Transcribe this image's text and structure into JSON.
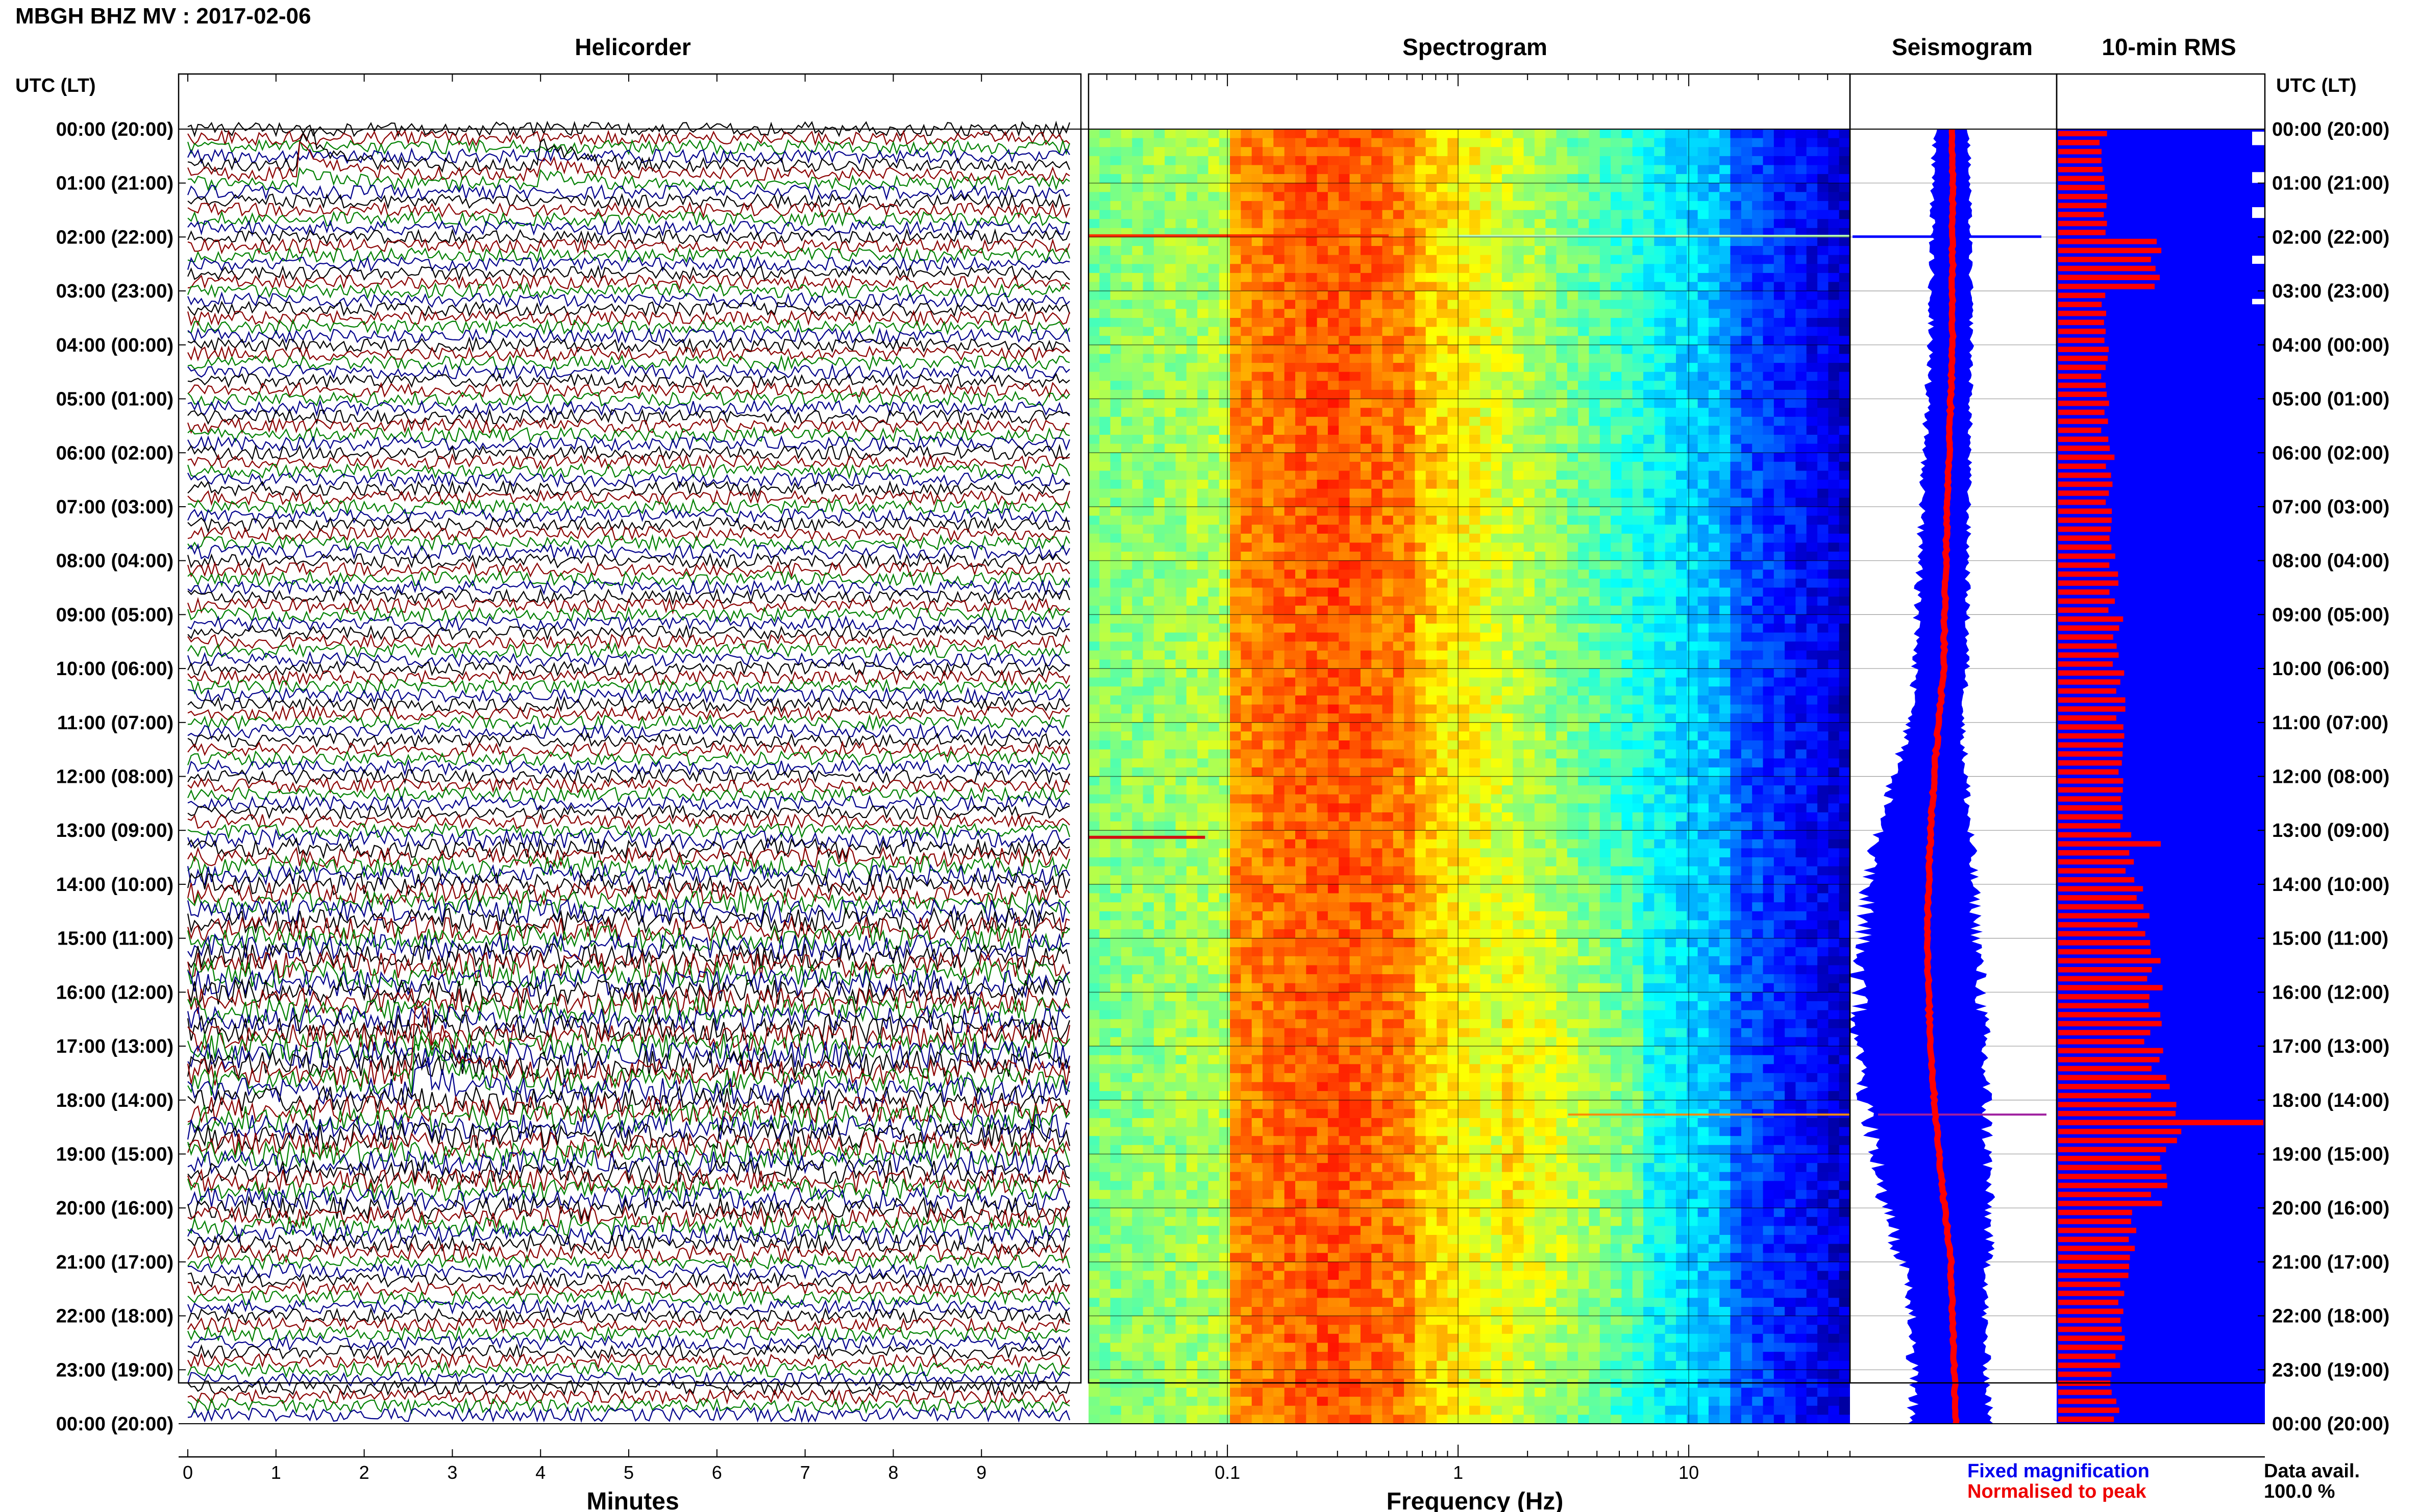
{
  "title": "MBGH BHZ MV : 2017-02-06",
  "time_axis_label": "UTC (LT)",
  "panels": {
    "helicorder": "Helicorder",
    "spectrogram": "Spectrogram",
    "seismogram": "Seismogram",
    "rms": "10-min RMS"
  },
  "legend": {
    "fixed": "Fixed magnification",
    "normalised": "Normalised to peak",
    "fixed_color": "#0000ee",
    "normalised_color": "#ee0000"
  },
  "data_avail": {
    "label": "Data avail.",
    "value": "100.0 %"
  },
  "colors": {
    "trace_cycle": [
      "#000000",
      "#8b0000",
      "#008000",
      "#00008b"
    ],
    "seismogram_fixed": "#0000ff",
    "seismogram_normalised": "#ff0000",
    "rms_background": "#0000ff",
    "rms_bars": "#ff0000"
  },
  "chart_data": [
    {
      "type": "line",
      "panel": "Helicorder",
      "xlabel": "Minutes",
      "x_ticks": [
        "0",
        "1",
        "2",
        "3",
        "4",
        "5",
        "6",
        "7",
        "8",
        "9"
      ],
      "xlim": [
        0,
        10
      ],
      "rows": 144,
      "row_minutes": 10,
      "events": [
        {
          "time_utc": "00:40",
          "minute": 1.35,
          "relative_amplitude": 4.5
        },
        {
          "time_utc": "00:40",
          "minute": 4.1,
          "relative_amplitude": 3.0
        },
        {
          "time_utc": "17:30",
          "minute": 2.65,
          "relative_amplitude": 8.5
        }
      ]
    },
    {
      "type": "heatmap",
      "panel": "Spectrogram",
      "xlabel": "Frequency (Hz)",
      "x_scale": "log",
      "xlim": [
        0.025,
        50
      ],
      "x_ticks": [
        "0.1",
        "1",
        "10"
      ],
      "x_tick_values": [
        0.1,
        1,
        10
      ],
      "colormap": "jet",
      "dominant_band_hz": [
        0.15,
        0.6
      ],
      "notes_hz": [
        {
          "time_utc": "13:05",
          "low_freq_event_hz": 0.05
        }
      ]
    },
    {
      "type": "area",
      "panel": "Seismogram",
      "series": [
        {
          "name": "Fixed magnification",
          "color": "#0000ff"
        },
        {
          "name": "Normalised to peak",
          "color": "#ff0000"
        }
      ]
    },
    {
      "type": "bar",
      "panel": "10-min RMS",
      "bars_per_day": 144,
      "relative_rms_hourly": [
        0.22,
        0.24,
        0.46,
        0.22,
        0.23,
        0.23,
        0.25,
        0.26,
        0.27,
        0.29,
        0.3,
        0.3,
        0.32,
        0.36,
        0.42,
        0.48,
        0.46,
        0.5,
        0.58,
        0.5,
        0.36,
        0.32,
        0.3,
        0.28
      ],
      "spikes_utc": [
        "02:00",
        "13:10",
        "18:20"
      ]
    }
  ],
  "time_ticks": [
    "00:00 (20:00)",
    "01:00 (21:00)",
    "02:00 (22:00)",
    "03:00 (23:00)",
    "04:00 (00:00)",
    "05:00 (01:00)",
    "06:00 (02:00)",
    "07:00 (03:00)",
    "08:00 (04:00)",
    "09:00 (05:00)",
    "10:00 (06:00)",
    "11:00 (07:00)",
    "12:00 (08:00)",
    "13:00 (09:00)",
    "14:00 (10:00)",
    "15:00 (11:00)",
    "16:00 (12:00)",
    "17:00 (13:00)",
    "18:00 (14:00)",
    "19:00 (15:00)",
    "20:00 (16:00)",
    "21:00 (17:00)",
    "22:00 (18:00)",
    "23:00 (19:00)",
    "00:00 (20:00)"
  ]
}
